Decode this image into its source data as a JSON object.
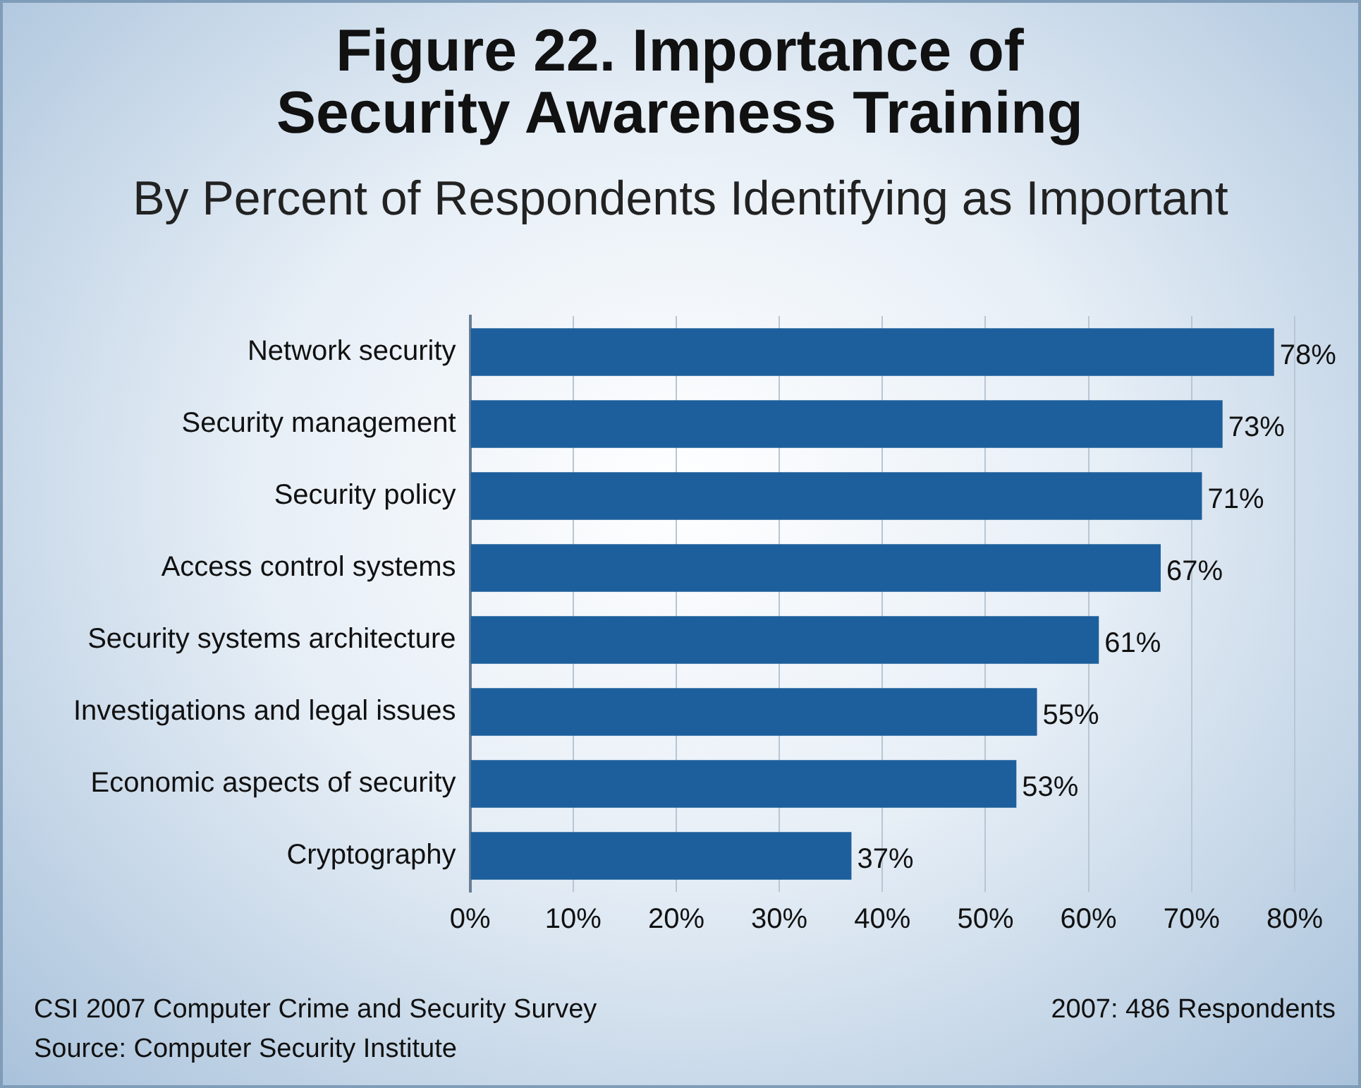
{
  "chart_data": {
    "type": "bar",
    "orientation": "horizontal",
    "title": "Figure 22. Importance of Security Awareness Training",
    "subtitle": "By Percent of Respondents Identifying as Important",
    "categories": [
      "Network security",
      "Security management",
      "Security policy",
      "Access control systems",
      "Security systems architecture",
      "Investigations and legal issues",
      "Economic aspects of security",
      "Cryptography"
    ],
    "values": [
      78,
      73,
      71,
      67,
      61,
      55,
      53,
      37
    ],
    "value_labels": [
      "78%",
      "73%",
      "71%",
      "67%",
      "61%",
      "55%",
      "53%",
      "37%"
    ],
    "color": "#1d5f9c",
    "xlim": [
      0,
      80
    ],
    "xticks": [
      {
        "value": 0,
        "label": "0%"
      },
      {
        "value": 10,
        "label": "10%"
      },
      {
        "value": 20,
        "label": "20%"
      },
      {
        "value": 30,
        "label": "30%"
      },
      {
        "value": 40,
        "label": "40%"
      },
      {
        "value": 50,
        "label": "50%"
      },
      {
        "value": 60,
        "label": "60%"
      },
      {
        "value": 70,
        "label": "70%"
      },
      {
        "value": 80,
        "label": "80%"
      }
    ],
    "grid": "x",
    "legend": false,
    "annotations": [
      "CSI 2007 Computer Crime and Security Survey",
      "Source: Computer Security Institute",
      "2007: 486 Respondents"
    ]
  }
}
